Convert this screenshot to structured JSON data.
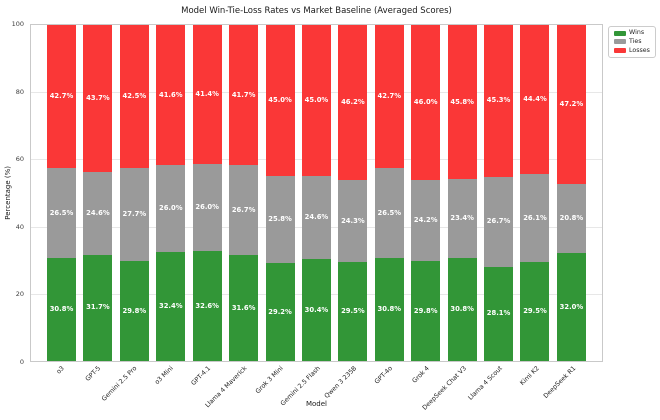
{
  "chart_data": {
    "type": "bar",
    "stacked": true,
    "title": "Model Win-Tie-Loss Rates vs Market Baseline (Averaged Scores)",
    "xlabel": "Model",
    "ylabel": "Percentage (%)",
    "ylim": [
      0,
      100
    ],
    "yticks": [
      0,
      20,
      40,
      60,
      80,
      100
    ],
    "grid": true,
    "legend_position": "upper-right-outside",
    "value_label_format": "{value}%",
    "categories": [
      "o3",
      "GPT-5",
      "Gemini 2.5 Pro",
      "o3 Mini",
      "GPT-4.1",
      "Llama 4 Maverick",
      "Grok 3 Mini",
      "Gemini 2.5 Flash",
      "Qwen 3 235B",
      "GPT-4o",
      "Grok 4",
      "DeepSeek Chat V3",
      "Llama 4 Scout",
      "Kimi K2",
      "DeepSeek R1"
    ],
    "series": [
      {
        "name": "Wins",
        "color": "#329637",
        "values": [
          30.8,
          31.7,
          29.8,
          32.4,
          32.6,
          31.6,
          29.2,
          30.4,
          29.5,
          30.8,
          29.8,
          30.8,
          28.1,
          29.5,
          32.0
        ]
      },
      {
        "name": "Ties",
        "color": "#9a9a9a",
        "values": [
          26.5,
          24.6,
          27.7,
          26.0,
          26.0,
          26.7,
          25.8,
          24.6,
          24.3,
          26.5,
          24.2,
          23.4,
          26.7,
          26.1,
          20.8
        ]
      },
      {
        "name": "Losses",
        "color": "#fa3737",
        "values": [
          42.7,
          43.7,
          42.5,
          41.6,
          41.4,
          41.7,
          45.0,
          45.0,
          46.2,
          42.7,
          46.0,
          45.8,
          45.3,
          44.4,
          47.2
        ]
      }
    ]
  }
}
